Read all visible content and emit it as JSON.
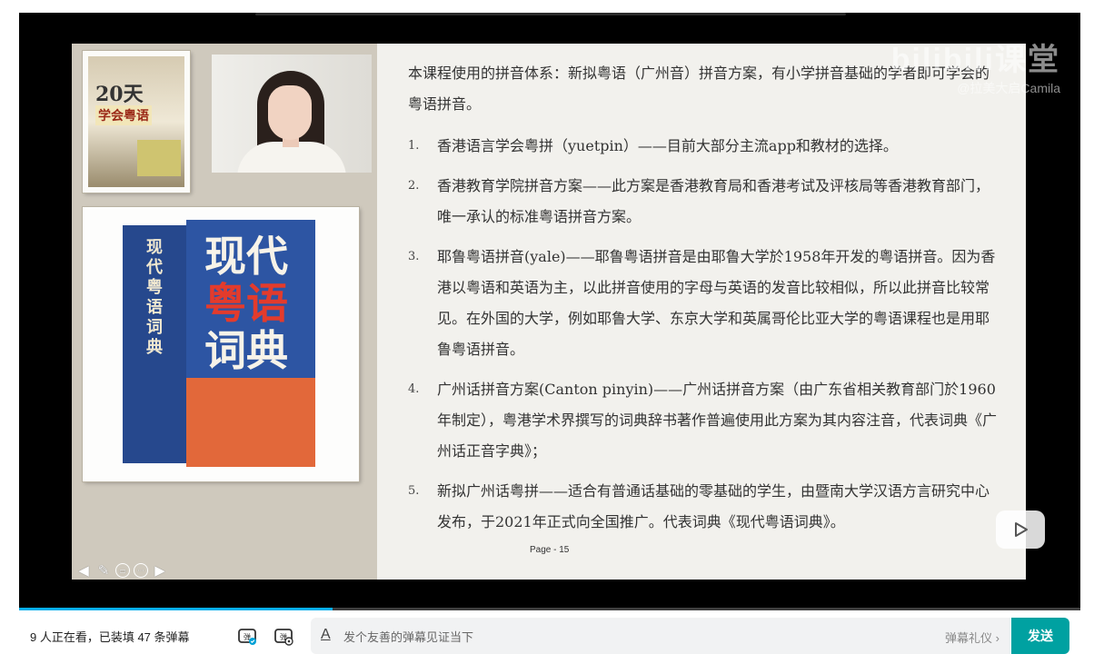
{
  "slide": {
    "intro": "本课程使用的拼音体系：新拟粤语（广州音）拼音方案，有小学拼音基础的学者即可学会的粤语拼音。",
    "items": [
      {
        "num": "1.",
        "text": "香港语言学会粤拼（yuetpin）——目前大部分主流app和教材的选择。"
      },
      {
        "num": "2.",
        "text": "香港教育学院拼音方案——此方案是香港教育局和香港考试及评核局等香港教育部门，唯一承认的标准粤语拼音方案。"
      },
      {
        "num": "3.",
        "text": "耶鲁粤语拼音(yale)——耶鲁粤语拼音是由耶鲁大学於1958年开发的粤语拼音。因为香港以粤语和英语为主，以此拼音使用的字母与英语的发音比较相似，所以此拼音比较常见。在外国的大学，例如耶鲁大学、东京大学和英属哥伦比亚大学的粤语课程也是用耶鲁粤语拼音。"
      },
      {
        "num": "4.",
        "text": "广州话拼音方案(Canton pinyin)——广州话拼音方案（由广东省相关教育部门於1960年制定），粤港学术界撰写的词典辞书著作普遍使用此方案为其内容注音，代表词典《广州话正音字典》；"
      },
      {
        "num": "5.",
        "text": "新拟广州话粤拼——适合有普通话基础的零基础的学生，由暨南大学汉语方言研究中心发布，于2021年正式向全国推广。代表词典《现代粤语词典》。"
      }
    ],
    "page_label": "Page - 15",
    "book_small": {
      "title": "20天",
      "subtitle": "学会粤语"
    },
    "book_big": {
      "title_line1": "现代",
      "title_line2": "粤语",
      "title_line3": "词典",
      "spine": "现代粤语词典"
    }
  },
  "watermark": {
    "logo": "bilibili课堂",
    "user": "@拉美大启Camila"
  },
  "player": {
    "progress": 0.295
  },
  "bottom": {
    "viewers": "9 人正在看，已装填 47 条弹幕",
    "danmaku_placeholder": "发个友善的弹幕见证当下",
    "etiquette": "弹幕礼仪 ›",
    "send": "发送"
  }
}
